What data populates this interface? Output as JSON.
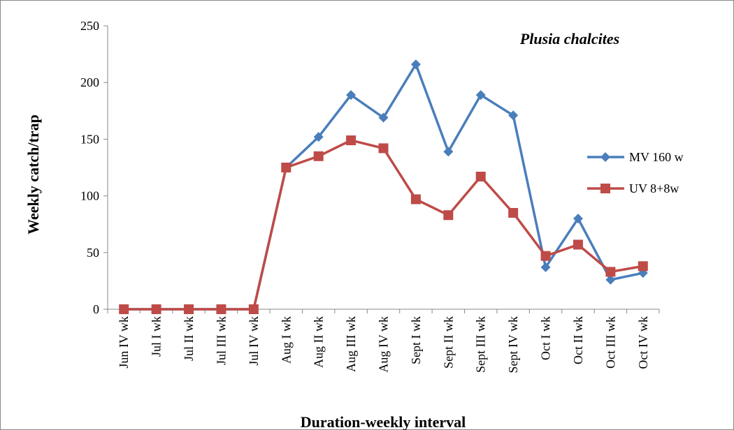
{
  "chart_data": {
    "type": "line",
    "title": "Plusia chalcites",
    "x_label": "Duration-weekly interval",
    "y_label": "Weekly catch/trap",
    "categories": [
      "Jun IV wk",
      "Jul I wk",
      "Jul II wk",
      "Jul III wk",
      "Jul IV wk",
      "Aug I wk",
      "Aug II wk",
      "Aug III wk",
      "Aug IV wk",
      "Sept I wk",
      "Sept II wk",
      "Sept III wk",
      "Sept IV wk",
      "Oct I wk",
      "Oct II wk",
      "Oct III wk",
      "Oct IV wk"
    ],
    "series": [
      {
        "name": "MV 160 w",
        "color": "#4a7ebb",
        "marker": "diamond",
        "values": [
          0,
          0,
          0,
          0,
          0,
          125,
          152,
          189,
          169,
          216,
          139,
          189,
          171,
          37,
          80,
          26,
          32
        ]
      },
      {
        "name": "UV 8+8w",
        "color": "#be4b48",
        "marker": "square",
        "values": [
          0,
          0,
          0,
          0,
          0,
          125,
          135,
          149,
          142,
          97,
          83,
          117,
          85,
          47,
          57,
          33,
          38
        ]
      }
    ],
    "ylim": [
      0,
      250
    ],
    "yticks": [
      0,
      50,
      100,
      150,
      200,
      250
    ],
    "grid": false
  }
}
